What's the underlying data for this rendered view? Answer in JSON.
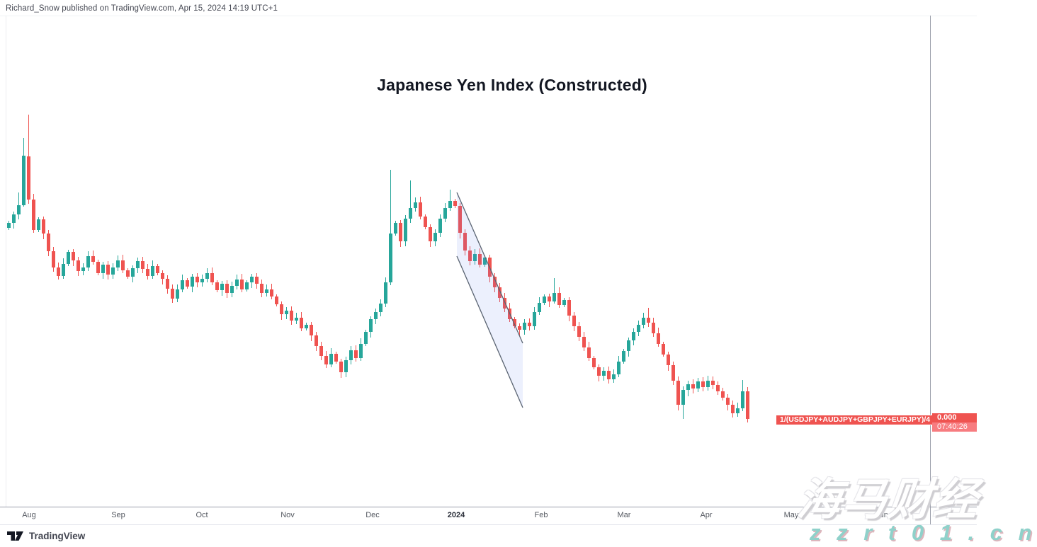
{
  "attribution": "Richard_Snow published on TradingView.com, Apr 15, 2024 14:19 UTC+1",
  "title": "Japanese Yen Index (Constructed)",
  "series_label": {
    "formula": "1/(USDJPY+AUDJPY+GBPJPY+EURJPY)/4",
    "price": "0.000",
    "countdown": "07:40:26"
  },
  "footer": {
    "logo_text": "TradingView"
  },
  "watermark": {
    "cjk_text": "海马财经",
    "url_text": "z z r t 0 1 . c n"
  },
  "colors": {
    "bull": "#26a69a",
    "bear": "#ef5350",
    "label_red": "#ef5350",
    "countdown_red": "#f77c80",
    "axis_line": "#9b9fab",
    "pane_border": "#ececf1",
    "tick_text": "#555961",
    "title_text": "#131722",
    "watermark_teal": "#8fd1ca",
    "watermark_shadow": "#ddb6bd"
  },
  "chart_data": {
    "type": "candlestick",
    "title": "Japanese Yen Index (Constructed)",
    "series_name": "1/(USDJPY+AUDJPY+GBPJPY+EURJPY)/4",
    "last_price_label": "0.000",
    "grid": false,
    "legend": false,
    "y_axis_note": "no numeric price labels visible; values below are pixel-space OHLC [open,high,low,close] with y increasing downward",
    "x0": 12,
    "dx": 7,
    "body_width": 5,
    "bull_color": "#26a69a",
    "bear_color": "#ef5350",
    "x_ticks": [
      {
        "label": "Aug",
        "x": 41
      },
      {
        "label": "Sep",
        "x": 167
      },
      {
        "label": "Oct",
        "x": 285
      },
      {
        "label": "Nov",
        "x": 406
      },
      {
        "label": "Dec",
        "x": 526
      },
      {
        "label": "2024",
        "x": 644,
        "bold": true
      },
      {
        "label": "Feb",
        "x": 764
      },
      {
        "label": "Mar",
        "x": 881
      },
      {
        "label": "Apr",
        "x": 997
      },
      {
        "label": "May",
        "x": 1117
      },
      {
        "label": "Jun",
        "x": 1245
      }
    ],
    "channel": {
      "shape": "parallel-channel",
      "points": [
        [
          645,
          272
        ],
        [
          738,
          485
        ],
        [
          738,
          576
        ],
        [
          645,
          362
        ]
      ],
      "line_color": "#5a6472",
      "fill_color": "rgba(100,130,235,0.12)"
    },
    "candles": [
      [
        322,
        312,
        325,
        315
      ],
      [
        315,
        299,
        323,
        303
      ],
      [
        303,
        272,
        310,
        290
      ],
      [
        290,
        195,
        292,
        220
      ],
      [
        221,
        162,
        288,
        282
      ],
      [
        282,
        274,
        329,
        325
      ],
      [
        325,
        307,
        328,
        310
      ],
      [
        310,
        306,
        338,
        330
      ],
      [
        330,
        325,
        362,
        355
      ],
      [
        355,
        349,
        384,
        378
      ],
      [
        378,
        371,
        395,
        390
      ],
      [
        390,
        365,
        394,
        373
      ],
      [
        373,
        353,
        376,
        356
      ],
      [
        356,
        352,
        376,
        368
      ],
      [
        368,
        363,
        390,
        383
      ],
      [
        383,
        372,
        389,
        378
      ],
      [
        378,
        355,
        383,
        362
      ],
      [
        362,
        354,
        374,
        370
      ],
      [
        370,
        367,
        389,
        386
      ],
      [
        386,
        370,
        394,
        374
      ],
      [
        374,
        369,
        395,
        388
      ],
      [
        388,
        372,
        394,
        378
      ],
      [
        378,
        361,
        383,
        368
      ],
      [
        368,
        360,
        386,
        382
      ],
      [
        382,
        379,
        394,
        391
      ],
      [
        391,
        375,
        399,
        379
      ],
      [
        379,
        364,
        386,
        369
      ],
      [
        369,
        363,
        386,
        380
      ],
      [
        380,
        373,
        395,
        390
      ],
      [
        390,
        368,
        394,
        376
      ],
      [
        376,
        373,
        389,
        386
      ],
      [
        386,
        382,
        402,
        394
      ],
      [
        394,
        389,
        415,
        408
      ],
      [
        408,
        402,
        428,
        422
      ],
      [
        422,
        402,
        427,
        409
      ],
      [
        409,
        388,
        413,
        396
      ],
      [
        396,
        393,
        408,
        405
      ],
      [
        405,
        387,
        413,
        391
      ],
      [
        391,
        386,
        406,
        399
      ],
      [
        399,
        388,
        405,
        394
      ],
      [
        394,
        379,
        399,
        386
      ],
      [
        386,
        378,
        403,
        399
      ],
      [
        399,
        396,
        413,
        410
      ],
      [
        410,
        397,
        418,
        401
      ],
      [
        401,
        396,
        421,
        414
      ],
      [
        414,
        398,
        420,
        404
      ],
      [
        404,
        388,
        409,
        395
      ],
      [
        395,
        387,
        413,
        409
      ],
      [
        409,
        396,
        412,
        399
      ],
      [
        399,
        387,
        407,
        391
      ],
      [
        391,
        386,
        408,
        401
      ],
      [
        401,
        395,
        420,
        414
      ],
      [
        414,
        402,
        419,
        409
      ],
      [
        409,
        401,
        423,
        419
      ],
      [
        419,
        416,
        433,
        430
      ],
      [
        430,
        426,
        452,
        444
      ],
      [
        444,
        434,
        451,
        439
      ],
      [
        439,
        433,
        459,
        453
      ],
      [
        453,
        442,
        458,
        449
      ],
      [
        449,
        441,
        468,
        464
      ],
      [
        464,
        456,
        467,
        459
      ],
      [
        459,
        455,
        482,
        474
      ],
      [
        474,
        469,
        496,
        489
      ],
      [
        489,
        483,
        509,
        503
      ],
      [
        503,
        496,
        520,
        515
      ],
      [
        515,
        492,
        519,
        500
      ],
      [
        500,
        497,
        514,
        511
      ],
      [
        511,
        507,
        534,
        526
      ],
      [
        526,
        504,
        533,
        509
      ],
      [
        509,
        489,
        515,
        495
      ],
      [
        495,
        488,
        511,
        506
      ],
      [
        506,
        478,
        510,
        486
      ],
      [
        486,
        466,
        489,
        469
      ],
      [
        469,
        447,
        477,
        451
      ],
      [
        451,
        436,
        458,
        441
      ],
      [
        441,
        423,
        447,
        429
      ],
      [
        429,
        392,
        434,
        399
      ],
      [
        399,
        240,
        403,
        330
      ],
      [
        330,
        312,
        333,
        315
      ],
      [
        315,
        311,
        349,
        341
      ],
      [
        341,
        304,
        348,
        309
      ],
      [
        309,
        255,
        315,
        294
      ],
      [
        294,
        279,
        299,
        286
      ],
      [
        286,
        278,
        310,
        306
      ],
      [
        306,
        303,
        324,
        321
      ],
      [
        321,
        317,
        349,
        341
      ],
      [
        341,
        324,
        348,
        329
      ],
      [
        329,
        303,
        335,
        309
      ],
      [
        309,
        287,
        314,
        294
      ],
      [
        294,
        268,
        298,
        284
      ],
      [
        284,
        281,
        294,
        291
      ],
      [
        291,
        287,
        337,
        329
      ],
      [
        329,
        324,
        361,
        354
      ],
      [
        354,
        348,
        375,
        369
      ],
      [
        369,
        352,
        374,
        359
      ],
      [
        359,
        351,
        378,
        374
      ],
      [
        374,
        361,
        377,
        364
      ],
      [
        364,
        360,
        399,
        391
      ],
      [
        391,
        386,
        413,
        406
      ],
      [
        406,
        400,
        427,
        421
      ],
      [
        421,
        414,
        441,
        436
      ],
      [
        436,
        428,
        455,
        451
      ],
      [
        451,
        448,
        464,
        461
      ],
      [
        461,
        457,
        474,
        466
      ],
      [
        466,
        451,
        473,
        456
      ],
      [
        456,
        450,
        467,
        461
      ],
      [
        461,
        434,
        466,
        441
      ],
      [
        441,
        420,
        445,
        428
      ],
      [
        428,
        416,
        431,
        419
      ],
      [
        419,
        415,
        434,
        426
      ],
      [
        426,
        393,
        429,
        414
      ],
      [
        414,
        406,
        435,
        431
      ],
      [
        431,
        421,
        434,
        424
      ],
      [
        424,
        420,
        454,
        446
      ],
      [
        446,
        441,
        468,
        461
      ],
      [
        461,
        455,
        482,
        476
      ],
      [
        476,
        469,
        496,
        491
      ],
      [
        491,
        483,
        510,
        506
      ],
      [
        506,
        503,
        522,
        519
      ],
      [
        519,
        515,
        539,
        531
      ],
      [
        531,
        519,
        538,
        524
      ],
      [
        524,
        518,
        542,
        536
      ],
      [
        536,
        522,
        541,
        529
      ],
      [
        529,
        503,
        533,
        511
      ],
      [
        511,
        493,
        514,
        496
      ],
      [
        496,
        477,
        504,
        481
      ],
      [
        481,
        464,
        488,
        469
      ],
      [
        469,
        453,
        475,
        459
      ],
      [
        459,
        442,
        464,
        449
      ],
      [
        449,
        435,
        462,
        456
      ],
      [
        456,
        449,
        476,
        471
      ],
      [
        471,
        463,
        490,
        486
      ],
      [
        486,
        483,
        504,
        501
      ],
      [
        501,
        497,
        524,
        516
      ],
      [
        516,
        511,
        544,
        538
      ],
      [
        538,
        532,
        580,
        572
      ],
      [
        572,
        546,
        592,
        551
      ],
      [
        551,
        538,
        560,
        543
      ],
      [
        543,
        536,
        556,
        549
      ],
      [
        549,
        534,
        554,
        539
      ],
      [
        539,
        533,
        553,
        547
      ],
      [
        547,
        531,
        552,
        538
      ],
      [
        538,
        532,
        550,
        544
      ],
      [
        544,
        539,
        558,
        553
      ],
      [
        553,
        548,
        566,
        562
      ],
      [
        562,
        557,
        580,
        572
      ],
      [
        572,
        566,
        590,
        584
      ],
      [
        584,
        569,
        589,
        577
      ],
      [
        577,
        537,
        581,
        553
      ],
      [
        553,
        547,
        597,
        592
      ]
    ]
  }
}
